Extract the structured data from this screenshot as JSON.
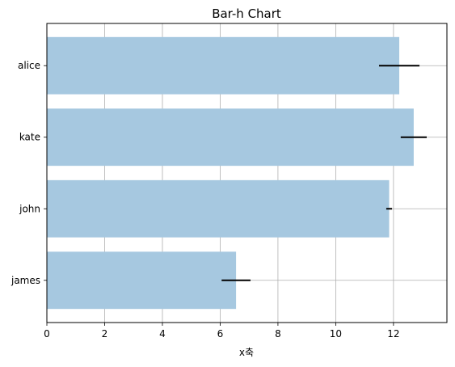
{
  "chart_data": {
    "type": "bar",
    "orientation": "horizontal",
    "title": "Bar-h Chart",
    "xlabel": "x축",
    "ylabel": "",
    "categories": [
      "james",
      "john",
      "kate",
      "alice"
    ],
    "values": [
      6.55,
      11.85,
      12.7,
      12.2
    ],
    "errors": [
      0.5,
      0.1,
      0.45,
      0.7
    ],
    "xlim": [
      0,
      13.85
    ],
    "xticks": [
      0,
      2,
      4,
      6,
      8,
      10,
      12
    ],
    "grid": true,
    "bar_color": "#a6c8e0",
    "error_color": "#000000"
  }
}
